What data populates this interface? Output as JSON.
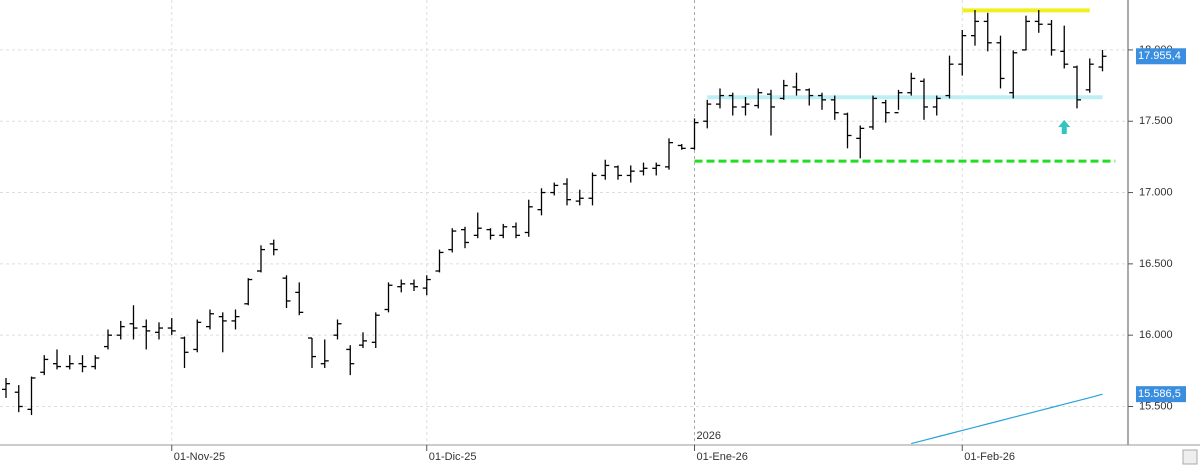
{
  "chart_data": {
    "type": "ohlc",
    "color": "#000000",
    "categories": [
      null,
      null,
      null,
      null,
      null,
      null,
      null,
      null,
      null,
      null,
      null,
      null,
      null,
      "01-Nov-25",
      null,
      null,
      null,
      null,
      null,
      null,
      null,
      null,
      null,
      null,
      null,
      null,
      null,
      null,
      null,
      null,
      null,
      null,
      null,
      "01-Dic-25",
      null,
      null,
      null,
      null,
      null,
      null,
      null,
      null,
      null,
      null,
      null,
      null,
      null,
      null,
      null,
      null,
      null,
      null,
      null,
      null,
      "01-Ene-26",
      null,
      null,
      null,
      null,
      null,
      null,
      null,
      null,
      null,
      null,
      null,
      null,
      null,
      null,
      null,
      null,
      null,
      null,
      null,
      null,
      "01-Feb-26",
      null,
      null,
      null,
      null,
      null,
      null,
      null,
      null,
      null,
      null,
      null
    ],
    "open": [
      15620,
      15600,
      15480,
      15740,
      15800,
      15780,
      15800,
      15780,
      15920,
      16000,
      16080,
      16060,
      16020,
      16050,
      15980,
      15900,
      16060,
      16130,
      16100,
      16220,
      16450,
      16640,
      16400,
      16300,
      15980,
      15800,
      16000,
      15900,
      15930,
      15950,
      16180,
      16340,
      16360,
      16330,
      16450,
      16600,
      16740,
      16700,
      16740,
      16700,
      16760,
      16720,
      16880,
      17000,
      17060,
      16940,
      16960,
      17120,
      17180,
      17120,
      17150,
      17170,
      17180,
      17330,
      17310,
      17500,
      17620,
      17680,
      17600,
      17610,
      17690,
      17660,
      17740,
      17720,
      17680,
      17650,
      17550,
      17380,
      17460,
      17630,
      17560,
      17700,
      17780,
      17600,
      17680,
      17900,
      18100,
      18200,
      18050,
      17700,
      18000,
      18200,
      18180,
      17990,
      17880,
      17720,
      17880
    ],
    "high": [
      15700,
      15650,
      15710,
      15860,
      15900,
      15860,
      15860,
      15860,
      16040,
      16100,
      16210,
      16110,
      16090,
      16120,
      15990,
      16110,
      16180,
      16160,
      16180,
      16400,
      16630,
      16670,
      16420,
      16370,
      15980,
      15970,
      16110,
      15930,
      16020,
      16160,
      16370,
      16390,
      16390,
      16420,
      16600,
      16750,
      16760,
      16860,
      16750,
      16780,
      16790,
      16950,
      17030,
      17070,
      17100,
      17020,
      17140,
      17230,
      17190,
      17190,
      17210,
      17210,
      17380,
      17340,
      17520,
      17650,
      17730,
      17700,
      17670,
      17730,
      17720,
      17790,
      17840,
      17730,
      17700,
      17680,
      17560,
      17470,
      17680,
      17650,
      17720,
      17840,
      17800,
      17680,
      17960,
      18140,
      18280,
      18260,
      18100,
      17997,
      18240,
      18280,
      18210,
      18170,
      17890,
      17940,
      18000
    ],
    "low": [
      15560,
      15460,
      15440,
      15720,
      15760,
      15760,
      15740,
      15760,
      15900,
      15970,
      15970,
      15900,
      15970,
      16000,
      15770,
      15880,
      16040,
      15880,
      16040,
      16210,
      16440,
      16560,
      16190,
      16140,
      15770,
      15770,
      15970,
      15720,
      15910,
      15910,
      16160,
      16300,
      16310,
      16280,
      16440,
      16580,
      16610,
      16680,
      16670,
      16680,
      16680,
      16690,
      16840,
      16980,
      16910,
      16910,
      16910,
      17090,
      17090,
      17070,
      17120,
      17120,
      17160,
      17300,
      17300,
      17450,
      17590,
      17540,
      17540,
      17590,
      17400,
      17650,
      17680,
      17610,
      17580,
      17510,
      17310,
      17240,
      17440,
      17490,
      17580,
      17680,
      17510,
      17540,
      17660,
      17820,
      18030,
      17990,
      17730,
      17660,
      17997,
      18120,
      17960,
      17870,
      17590,
      17700,
      17850
    ],
    "close": [
      15660,
      15500,
      15700,
      15830,
      15780,
      15800,
      15780,
      15840,
      16000,
      16060,
      16050,
      16030,
      16050,
      16030,
      15880,
      16090,
      16150,
      16100,
      16130,
      16390,
      16600,
      16600,
      16240,
      16160,
      15850,
      15820,
      16080,
      15800,
      15960,
      16140,
      16350,
      16360,
      16340,
      16390,
      16580,
      16730,
      16650,
      16750,
      16700,
      16760,
      16700,
      16900,
      17000,
      17050,
      16950,
      16960,
      17120,
      17190,
      17120,
      17150,
      17170,
      17190,
      17350,
      17310,
      17490,
      17620,
      17680,
      17600,
      17620,
      17700,
      17600,
      17750,
      17720,
      17680,
      17650,
      17560,
      17400,
      17450,
      17660,
      17560,
      17700,
      17800,
      17600,
      17660,
      17900,
      18100,
      18200,
      18050,
      17800,
      17980,
      18200,
      18180,
      18000,
      17900,
      17650,
      17900,
      17955.4
    ],
    "last_label": "17.955,4",
    "last_label_color": "#3a8ee0",
    "ma": {
      "color": "#2aa3d8",
      "values": [
        null,
        null,
        null,
        null,
        null,
        null,
        null,
        null,
        null,
        null,
        null,
        null,
        null,
        null,
        null,
        null,
        null,
        null,
        null,
        null,
        null,
        null,
        null,
        null,
        null,
        null,
        null,
        null,
        null,
        null,
        null,
        null,
        null,
        null,
        null,
        null,
        null,
        null,
        null,
        null,
        null,
        null,
        null,
        null,
        null,
        null,
        null,
        null,
        null,
        null,
        null,
        null,
        null,
        null,
        null,
        null,
        null,
        null,
        null,
        null,
        null,
        null,
        null,
        null,
        null,
        null,
        null,
        null,
        null,
        null,
        null,
        15240,
        15263,
        15286,
        15309,
        15332,
        15355,
        15378,
        15401,
        15424,
        15447,
        15470,
        15493,
        15516,
        15539,
        15562,
        15586.5
      ],
      "last_label": "15.586,5"
    },
    "levels": [
      {
        "value": 18277,
        "color": "#f0f020",
        "dash": false,
        "x_range": [
          75,
          85
        ]
      },
      {
        "value": 17668,
        "color": "#bdf0f4",
        "dash": false,
        "x_range": [
          55,
          86
        ]
      },
      {
        "value": 17220,
        "color": "#22dd22",
        "dash": true,
        "x_range": [
          54,
          87
        ]
      }
    ],
    "markers": [
      {
        "index": 83,
        "value": 17460,
        "color": "#33c4c0"
      }
    ],
    "year_label": "2026",
    "ylim": [
      15230,
      18350
    ],
    "yticks": [
      {
        "value": 15500,
        "label": "15.500"
      },
      {
        "value": 16000,
        "label": "16.000"
      },
      {
        "value": 16500,
        "label": "16.500"
      },
      {
        "value": 17000,
        "label": "17.000"
      },
      {
        "value": 17500,
        "label": "17.500"
      },
      {
        "value": 18000,
        "label": "18.000"
      }
    ],
    "grid": true
  }
}
